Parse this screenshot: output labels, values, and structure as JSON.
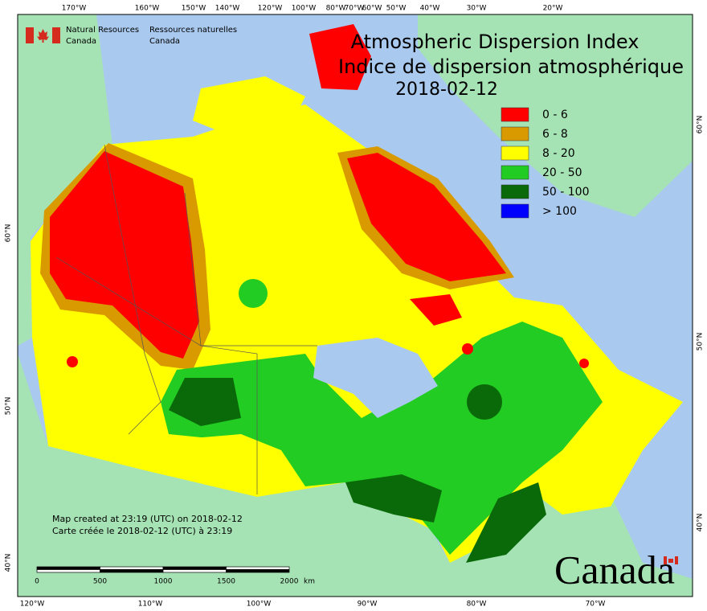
{
  "header": {
    "agency_en": [
      "Natural Resources",
      "Canada"
    ],
    "agency_fr": [
      "Ressources naturelles",
      "Canada"
    ]
  },
  "title": {
    "en": "Atmospheric Dispersion Index",
    "fr": "Indice de dispersion atmosphérique",
    "date": "2018-02-12"
  },
  "legend": [
    {
      "label": "0 - 6",
      "color": "#ff0000"
    },
    {
      "label": "6 - 8",
      "color": "#d99a00"
    },
    {
      "label": "8 - 20",
      "color": "#ffff00"
    },
    {
      "label": "20 - 50",
      "color": "#22cc22"
    },
    {
      "label": "50 - 100",
      "color": "#0a6a0a"
    },
    {
      "label": "> 100",
      "color": "#0000ff"
    }
  ],
  "graticule": {
    "top": [
      "170°W",
      "160°W",
      "150°W",
      "140°W",
      "120°W",
      "100°W",
      "80°W",
      "70°W",
      "60°W",
      "50°W",
      "40°W",
      "30°W",
      "20°W"
    ],
    "bottom": [
      "120°W",
      "110°W",
      "100°W",
      "90°W",
      "80°W",
      "70°W"
    ],
    "left": [
      "60°N",
      "50°N",
      "40°N"
    ],
    "right": [
      "60°N",
      "50°N",
      "40°N"
    ]
  },
  "footer": {
    "created_en": "Map created at 23:19 (UTC) on 2018-02-12",
    "created_fr": "Carte créée le 2018-02-12 (UTC) à 23:19"
  },
  "scale_bar": {
    "labels": [
      "0",
      "500",
      "1000",
      "1500",
      "2000"
    ],
    "unit": "km"
  },
  "wordmark": "Canada"
}
